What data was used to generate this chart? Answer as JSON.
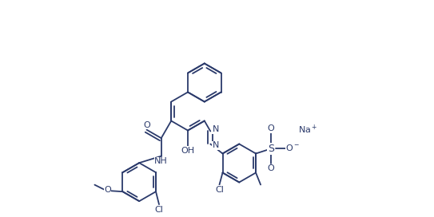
{
  "bg": "#ffffff",
  "lc": "#2b3a6b",
  "lw": 1.3,
  "fs": 7.5,
  "fw": 5.43,
  "fh": 2.72,
  "dpi": 100,
  "xlim": [
    0,
    10.86
  ],
  "ylim": [
    0,
    5.44
  ]
}
